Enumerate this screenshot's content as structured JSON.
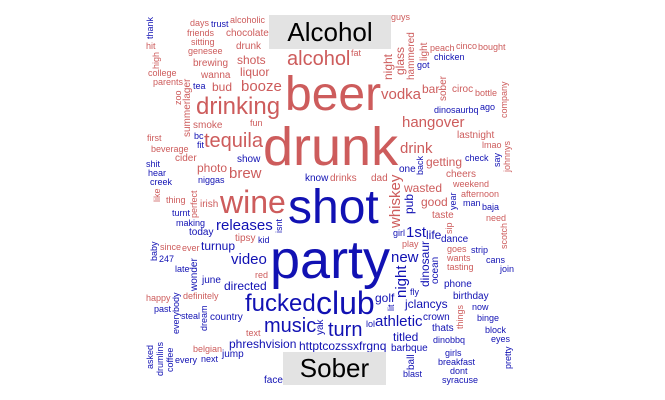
{
  "labels": {
    "top": "Alcohol",
    "bottom": "Sober"
  },
  "colors": {
    "alcohol": "#cd5c5c",
    "sober": "#1111b3",
    "label_bg": "#e3e3e3"
  },
  "alcohol_words": [
    "drunk",
    "beer",
    "wine",
    "drinking",
    "alcohol",
    "tequila",
    "vodka",
    "drink",
    "whiskey",
    "brew",
    "hangover",
    "booze",
    "wasted",
    "night",
    "liquor",
    "getting",
    "good",
    "photo",
    "glass",
    "bar",
    "shots",
    "bud",
    "drinks",
    "hammered",
    "smoke",
    "drunk",
    "cheers",
    "tipsy",
    "sober",
    "dad",
    "taste",
    "wanna",
    "irish",
    "light",
    "chocolate",
    "cider",
    "ciroc",
    "lastnight",
    "summerlager",
    "brewing",
    "weekend",
    "alcoholic",
    "afternoon",
    "perfect",
    "beverage",
    "peach",
    "genesee",
    "guys",
    "sip",
    "lmao",
    "fun",
    "thing",
    "bottle",
    "zoo",
    "goes",
    "sitting",
    "parents",
    "cinco",
    "johnnys",
    "play",
    "wants",
    "ever",
    "red",
    "like",
    "friends",
    "first",
    "need",
    "tasting",
    "company",
    "college",
    "days",
    "definitely",
    "bought",
    "scotch",
    "belgian",
    "ocallaghans",
    "since",
    "authentic",
    "high",
    "happy",
    "text",
    "remember",
    "everyone",
    "things",
    "henny",
    "wish",
    "went",
    "ready",
    "bad",
    "betterale",
    "alone",
    "think",
    "youre",
    "still",
    "fuck",
    "kiss",
    "guy",
    "fat",
    "seneca",
    "lets",
    "white",
    "pour",
    "much",
    "together",
    "real",
    "want",
    "fight",
    "bottom",
    "last",
    "cant",
    "old",
    "take",
    "ipa",
    "mom",
    "days",
    "fire",
    "store",
    "hope",
    "sweet",
    "pop",
    "hit"
  ],
  "sober_words": [
    "party",
    "shot",
    "club",
    "fucked",
    "turn",
    "music",
    "new",
    "video",
    "night",
    "releases",
    "athletic",
    "1st",
    "golf",
    "dinosaur",
    "httptcozssxfrgnq",
    "directed",
    "jclancys",
    "phreshvision",
    "pub",
    "titled",
    "life",
    "turnup",
    "know",
    "ocean",
    "country",
    "crown",
    "barbque",
    "june",
    "yak",
    "one",
    "dance",
    "phone",
    "today",
    "ball",
    "show",
    "thats",
    "face",
    "jump",
    "wonder",
    "birthday",
    "making",
    "niggas",
    "dinobbq",
    "dream",
    "blast",
    "strip",
    "late",
    "steal",
    "isnt",
    "kid",
    "man",
    "turnt",
    "now",
    "back",
    "girls",
    "next",
    "247",
    "cans",
    "everybody",
    "breakfast",
    "baja",
    "binge",
    "dont",
    "year",
    "girl",
    "every",
    "past",
    "check",
    "baby",
    "block",
    "syracuse",
    "join",
    "dinosaurbq",
    "coffee",
    "creek",
    "chicken",
    "eyes",
    "trashed",
    "drumlins",
    "hear",
    "rochester",
    "screw",
    "cappull",
    "pretty",
    "shit",
    "lol",
    "ago",
    "trust",
    "asked",
    "fly",
    "head",
    "naishekirah",
    "going",
    "thank",
    "damn",
    "invited",
    "dairy",
    "tea",
    "times",
    "midtown",
    "whats",
    "family",
    "really",
    "say",
    "weeks",
    "hope",
    "fit",
    "got",
    "see",
    "will",
    "may",
    "day",
    "bc",
    "cool",
    "sleep",
    "boys",
    "stay",
    "yall",
    "lit"
  ]
}
